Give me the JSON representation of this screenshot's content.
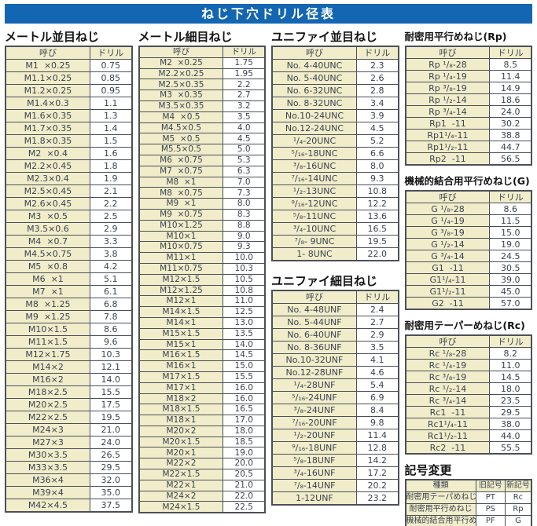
{
  "title": "ねじ下穴ドリル径表",
  "colors": {
    "title_bar": "#1366b2",
    "cell_beige": "#f1edca",
    "border": "#4b5058",
    "text": "#3a4250"
  },
  "tables": {
    "metric_coarse": {
      "title": "メートル並目ねじ",
      "headers": [
        "呼び",
        "ドリル"
      ],
      "rows": [
        [
          "M1  ×0.25",
          "0.75"
        ],
        [
          "M1.1×0.25",
          "0.85"
        ],
        [
          "M1.2×0.25",
          "0.95"
        ],
        [
          "M1.4×0.3",
          "1.1"
        ],
        [
          "M1.6×0.35",
          "1.3"
        ],
        [
          "M1.7×0.35",
          "1.4"
        ],
        [
          "M1.8×0.35",
          "1.5"
        ],
        [
          "M2  ×0.4",
          "1.6"
        ],
        [
          "M2.2×0.45",
          "1.8"
        ],
        [
          "M2.3×0.4",
          "1.9"
        ],
        [
          "M2.5×0.45",
          "2.1"
        ],
        [
          "M2.6×0.45",
          "2.2"
        ],
        [
          "M3  ×0.5",
          "2.5"
        ],
        [
          "M3.5×0.6",
          "2.9"
        ],
        [
          "M4  ×0.7",
          "3.3"
        ],
        [
          "M4.5×0.75",
          "3.8"
        ],
        [
          "M5  ×0.8",
          "4.2"
        ],
        [
          "M6  ×1",
          "5.1"
        ],
        [
          "M7  ×1",
          "6.1"
        ],
        [
          "M8  ×1.25",
          "6.8"
        ],
        [
          "M9  ×1.25",
          "7.8"
        ],
        [
          "M10×1.5",
          "8.6"
        ],
        [
          "M11×1.5",
          "9.6"
        ],
        [
          "M12×1.75",
          "10.3"
        ],
        [
          "M14×2",
          "12.1"
        ],
        [
          "M16×2",
          "14.0"
        ],
        [
          "M18×2.5",
          "15.5"
        ],
        [
          "M20×2.5",
          "17.5"
        ],
        [
          "M22×2.5",
          "19.5"
        ],
        [
          "M24×3",
          "21.0"
        ],
        [
          "M27×3",
          "24.0"
        ],
        [
          "M30×3.5",
          "26.5"
        ],
        [
          "M33×3.5",
          "29.5"
        ],
        [
          "M36×4",
          "32.0"
        ],
        [
          "M39×4",
          "35.0"
        ],
        [
          "M42×4.5",
          "37.5"
        ]
      ]
    },
    "metric_fine": {
      "title": "メートル細目ねじ",
      "headers": [
        "呼び",
        "ドリル"
      ],
      "rows": [
        [
          "M2  ×0.25",
          "1.75"
        ],
        [
          "M2.2×0.25",
          "1.95"
        ],
        [
          "M2.5×0.35",
          "2.2"
        ],
        [
          "M3  ×0.35",
          "2.7"
        ],
        [
          "M3.5×0.35",
          "3.2"
        ],
        [
          "M4  ×0.5",
          "3.5"
        ],
        [
          "M4.5×0.5",
          "4.0"
        ],
        [
          "M5  ×0.5",
          "4.5"
        ],
        [
          "M5.5×0.5",
          "5.0"
        ],
        [
          "M6  ×0.75",
          "5.3"
        ],
        [
          "M7  ×0.75",
          "6.3"
        ],
        [
          "M8  ×1",
          "7.0"
        ],
        [
          "M8  ×0.75",
          "7.3"
        ],
        [
          "M9  ×1",
          "8.0"
        ],
        [
          "M9  ×0.75",
          "8.3"
        ],
        [
          "M10×1.25",
          "8.8"
        ],
        [
          "M10×1",
          "9.0"
        ],
        [
          "M10×0.75",
          "9.3"
        ],
        [
          "M11×1",
          "10.0"
        ],
        [
          "M11×0.75",
          "10.3"
        ],
        [
          "M12×1.5",
          "10.5"
        ],
        [
          "M12×1.25",
          "10.8"
        ],
        [
          "M12×1",
          "11.0"
        ],
        [
          "M14×1.5",
          "12.5"
        ],
        [
          "M14×1",
          "13.0"
        ],
        [
          "M15×1.5",
          "13.5"
        ],
        [
          "M15×1",
          "14.0"
        ],
        [
          "M16×1.5",
          "14.5"
        ],
        [
          "M16×1",
          "15.0"
        ],
        [
          "M17×1.5",
          "15.5"
        ],
        [
          "M17×1",
          "16.0"
        ],
        [
          "M18×2",
          "16.0"
        ],
        [
          "M18×1.5",
          "16.5"
        ],
        [
          "M18×1",
          "17.0"
        ],
        [
          "M20×2",
          "18.0"
        ],
        [
          "M20×1.5",
          "18.5"
        ],
        [
          "M20×1",
          "19.0"
        ],
        [
          "M22×2",
          "20.0"
        ],
        [
          "M22×1.5",
          "20.5"
        ],
        [
          "M22×1",
          "21.0"
        ],
        [
          "M24×2",
          "22.0"
        ],
        [
          "M24×1.5",
          "22.5"
        ]
      ]
    },
    "unified_coarse": {
      "title": "ユニファイ並目ねじ",
      "headers": [
        "呼び",
        "ドリル"
      ],
      "rows": [
        [
          "No. 4-40UNC",
          "2.3"
        ],
        [
          "No. 5-40UNC",
          "2.6"
        ],
        [
          "No. 6-32UNC",
          "2.8"
        ],
        [
          "No. 8-32UNC",
          "3.4"
        ],
        [
          "No.10-24UNC",
          "3.9"
        ],
        [
          "No.12-24UNC",
          "4.5"
        ],
        [
          "¹/₄-20UNC",
          "5.2"
        ],
        [
          "⁵/₁₆-18UNC",
          "6.6"
        ],
        [
          "³/₈-16UNC",
          "8.0"
        ],
        [
          "⁷/₁₆-14UNC",
          "9.3"
        ],
        [
          "¹/₂-13UNC",
          "10.8"
        ],
        [
          "⁹/₁₆-12UNC",
          "12.2"
        ],
        [
          "⁵/₈-11UNC",
          "13.6"
        ],
        [
          "³/₄-10UNC",
          "16.5"
        ],
        [
          "⁷/₈- 9UNC",
          "19.5"
        ],
        [
          "1- 8UNC",
          "22.0"
        ]
      ]
    },
    "unified_fine": {
      "title": "ユニファイ細目ねじ",
      "headers": [
        "呼び",
        "ドリル"
      ],
      "rows": [
        [
          "No. 4-48UNF",
          "2.4"
        ],
        [
          "No. 5-44UNF",
          "2.7"
        ],
        [
          "No. 6-40UNF",
          "2.9"
        ],
        [
          "No. 8-36UNF",
          "3.5"
        ],
        [
          "No.10-32UNF",
          "4.1"
        ],
        [
          "No.12-28UNF",
          "4.6"
        ],
        [
          "¹/₄-28UNF",
          "5.4"
        ],
        [
          "⁵/₁₆-24UNF",
          "6.9"
        ],
        [
          "³/₈-24UNF",
          "8.4"
        ],
        [
          "⁷/₁₆-20UNF",
          "9.8"
        ],
        [
          "¹/₂-20UNF",
          "11.4"
        ],
        [
          "⁹/₁₆-18UNF",
          "12.8"
        ],
        [
          "⁵/₈-18UNF",
          "14.2"
        ],
        [
          "³/₄-16UNF",
          "17.2"
        ],
        [
          "⁷/₈-14UNF",
          "20.2"
        ],
        [
          "1-12UNF",
          "23.2"
        ]
      ]
    },
    "rp": {
      "title": "耐密用平行めねじ(Rp)",
      "headers": [
        "呼び",
        "ドリル"
      ],
      "rows": [
        [
          "Rp ¹/₈-28",
          "8.5"
        ],
        [
          "Rp ¹/₄-19",
          "11.4"
        ],
        [
          "Rp ³/₈-19",
          "14.9"
        ],
        [
          "Rp ¹/₂-14",
          "18.6"
        ],
        [
          "Rp ³/₄-14",
          "24.0"
        ],
        [
          "Rp1  -11",
          "30.2"
        ],
        [
          "Rp1¹/₄-11",
          "38.8"
        ],
        [
          "Rp1¹/₂-11",
          "44.7"
        ],
        [
          "Rp2  -11",
          "56.5"
        ]
      ]
    },
    "g": {
      "title": "機械的結合用平行めねじ(G)",
      "headers": [
        "呼び",
        "ドリル"
      ],
      "rows": [
        [
          "G ¹/₈-28",
          "8.6"
        ],
        [
          "G ¹/₄-19",
          "11.5"
        ],
        [
          "G ³/₈-19",
          "15.0"
        ],
        [
          "G ¹/₂-14",
          "19.0"
        ],
        [
          "G ³/₄-14",
          "24.5"
        ],
        [
          "G1  -11",
          "30.5"
        ],
        [
          "G1¹/₄-11",
          "39.0"
        ],
        [
          "G1¹/₂-11",
          "45.0"
        ],
        [
          "G2  -11",
          "57.0"
        ]
      ]
    },
    "rc": {
      "title": "耐密用テーパーめねじ(Rc)",
      "headers": [
        "呼び",
        "ドリル"
      ],
      "rows": [
        [
          "Rc ¹/₈-28",
          "8.2"
        ],
        [
          "Rc ¹/₄-19",
          "11.0"
        ],
        [
          "Rc ³/₈-19",
          "14.5"
        ],
        [
          "Rc ¹/₂-14",
          "18.0"
        ],
        [
          "Rc ³/₄-14",
          "23.5"
        ],
        [
          "Rc1  -11",
          "29.5"
        ],
        [
          "Rc1¹/₄-11",
          "38.0"
        ],
        [
          "Rc1¹/₂-11",
          "44.0"
        ],
        [
          "Rc2  -11",
          "55.5"
        ]
      ]
    },
    "symbols": {
      "title": "記号変更",
      "headers": [
        "種類",
        "旧記号",
        "新記号"
      ],
      "rows": [
        [
          "耐密用テーパめねじ",
          "PT",
          "Rc"
        ],
        [
          "耐密用平行めねじ",
          "PS",
          "Rp"
        ],
        [
          "機械的結合用平行めねじ",
          "PF",
          "G"
        ]
      ]
    }
  }
}
